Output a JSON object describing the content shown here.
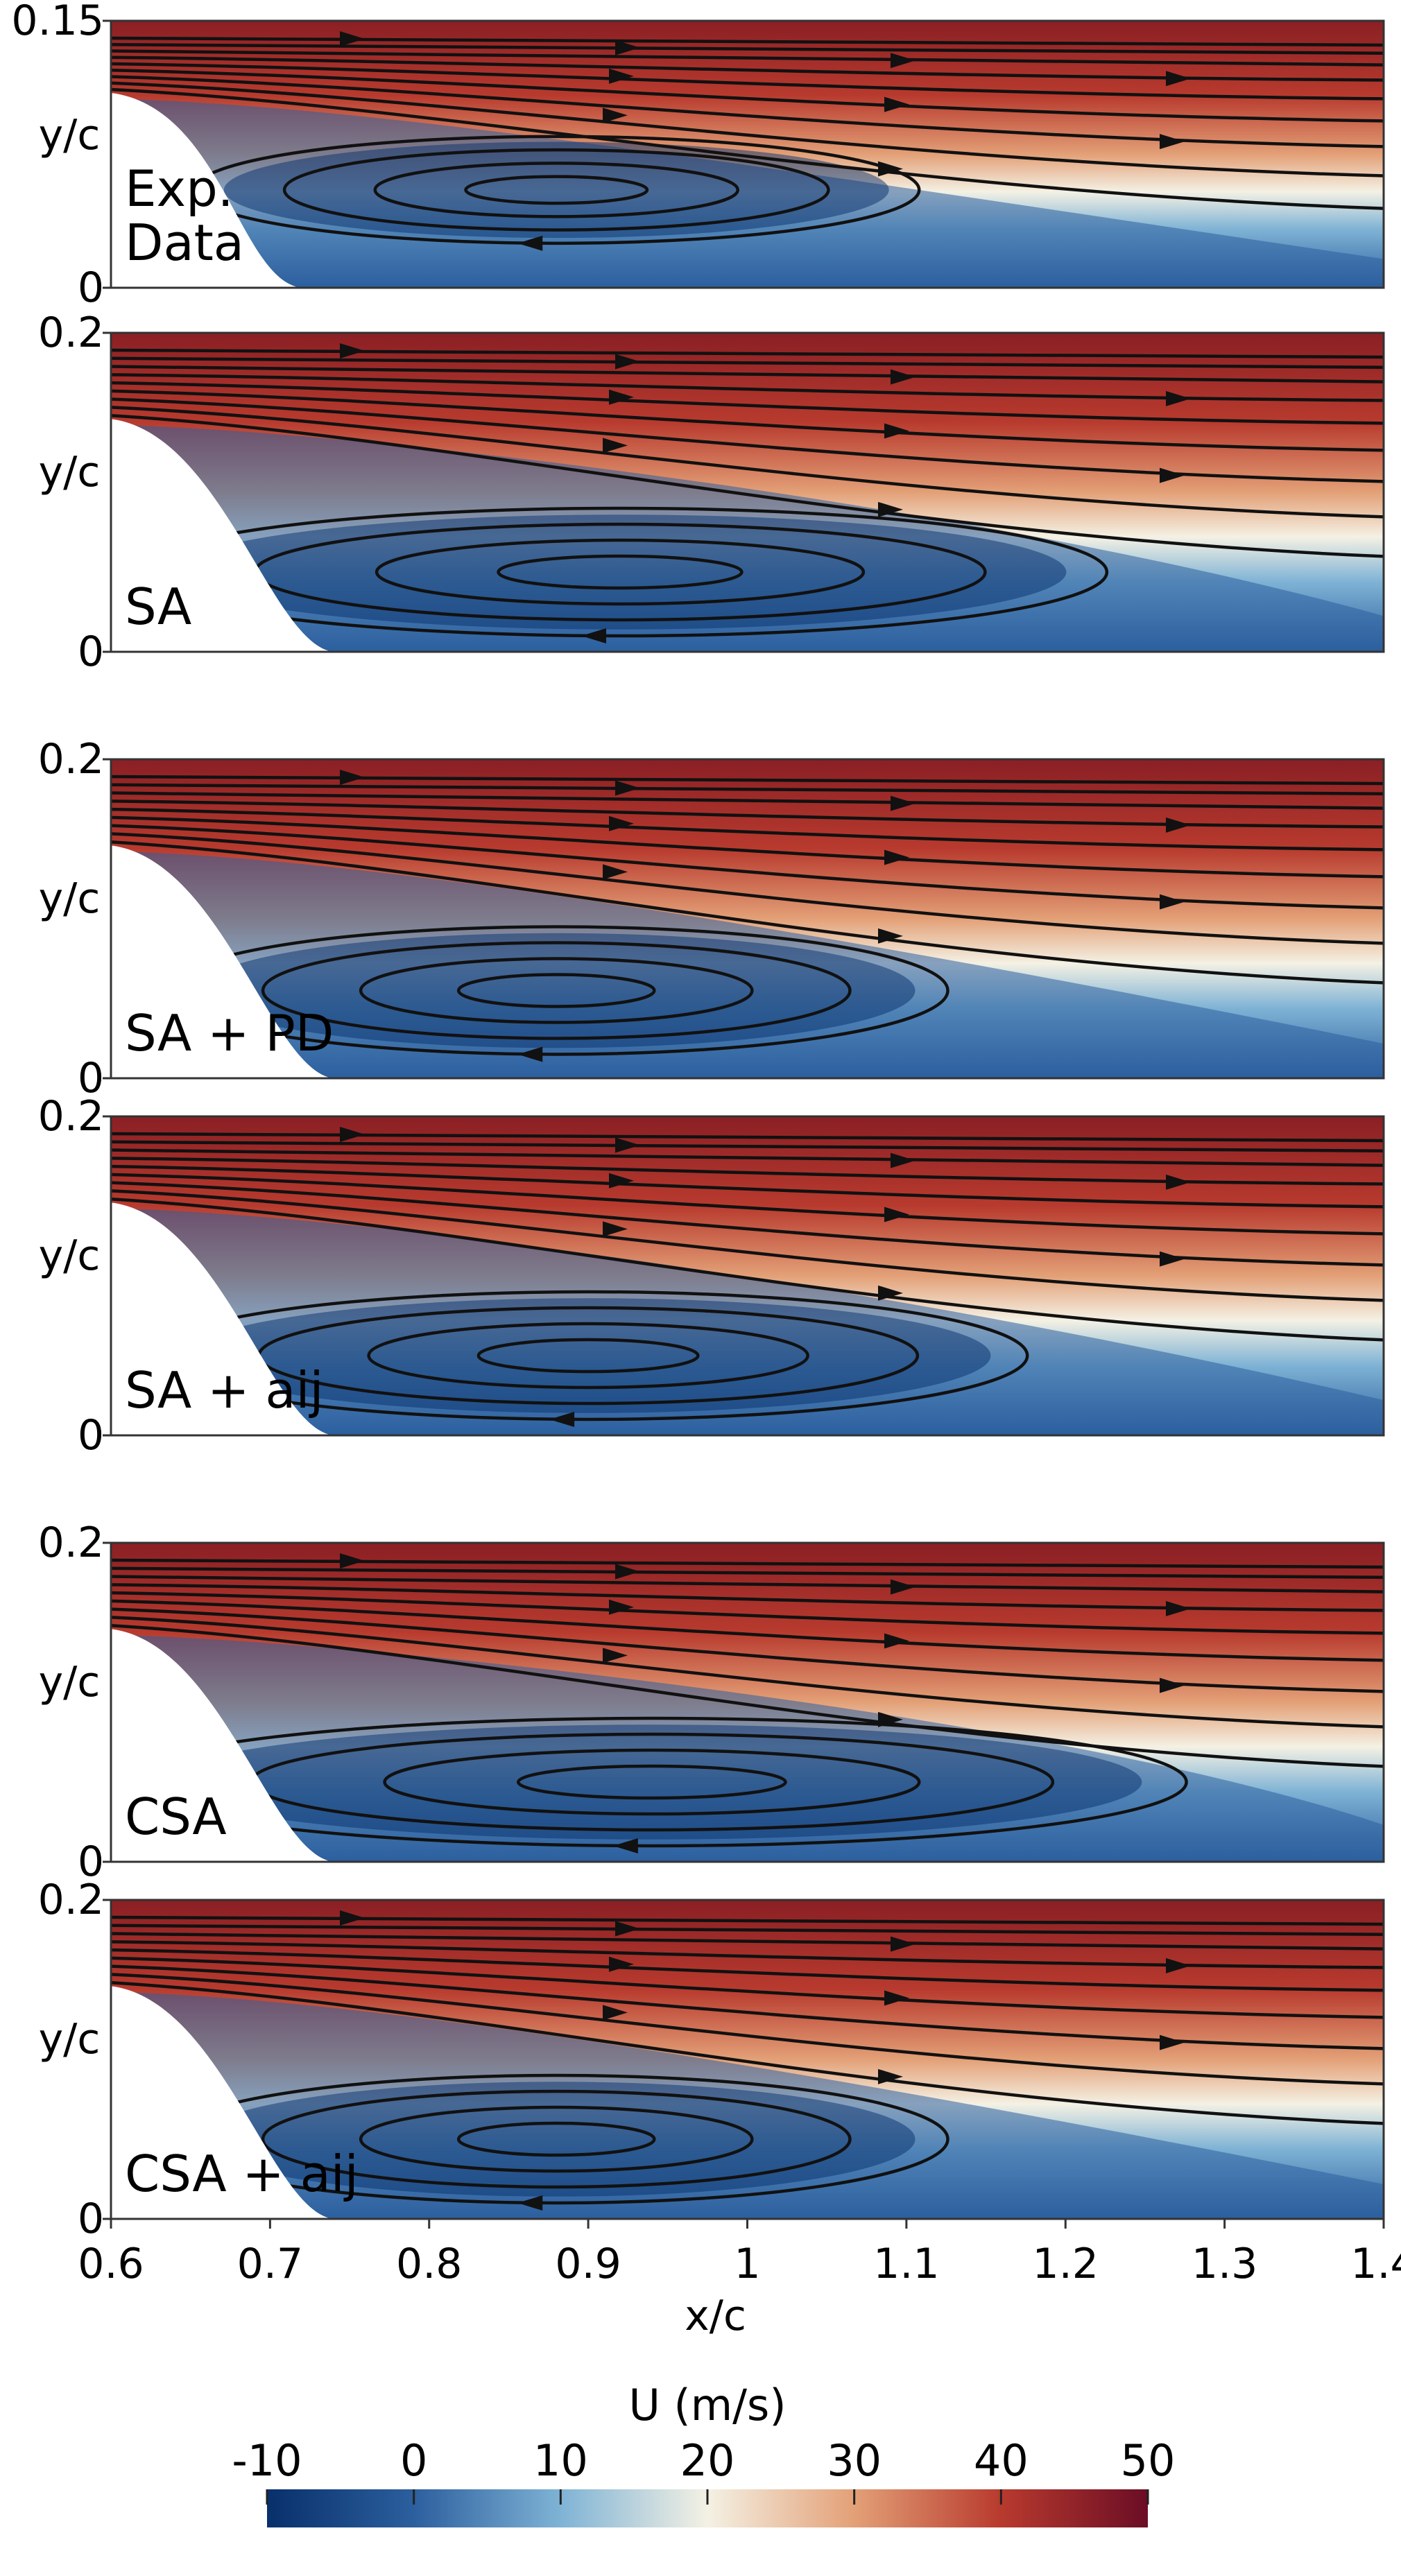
{
  "chart_data": {
    "type": "heatmap",
    "xlabel": "x/c",
    "x_ticks": [
      0.6,
      0.7,
      0.8,
      0.9,
      1,
      1.1,
      1.2,
      1.3,
      1.4
    ],
    "xlim": [
      0.6,
      1.4
    ],
    "panels": [
      {
        "label_lines": [
          "Exp.",
          "Data"
        ],
        "ylabel": "y/c",
        "ylim": [
          0,
          0.15
        ],
        "y_ticks": [
          0,
          0.15
        ],
        "vortex_center": [
          0.88,
          0.055
        ],
        "reattachment_x": 1.1
      },
      {
        "label_lines": [
          "SA"
        ],
        "ylabel": "y/c",
        "ylim": [
          0,
          0.2
        ],
        "y_ticks": [
          0,
          0.2
        ],
        "vortex_center": [
          0.92,
          0.05
        ],
        "reattachment_x": 1.25
      },
      {
        "label_lines": [
          "SA + PD"
        ],
        "ylabel": "y/c",
        "ylim": [
          0,
          0.2
        ],
        "y_ticks": [
          0,
          0.2
        ],
        "vortex_center": [
          0.88,
          0.055
        ],
        "reattachment_x": 1.15
      },
      {
        "label_lines": [
          "SA + aij"
        ],
        "ylabel": "y/c",
        "ylim": [
          0,
          0.2
        ],
        "y_ticks": [
          0,
          0.2
        ],
        "vortex_center": [
          0.9,
          0.05
        ],
        "reattachment_x": 1.2
      },
      {
        "label_lines": [
          "CSA"
        ],
        "ylabel": "y/c",
        "ylim": [
          0,
          0.2
        ],
        "y_ticks": [
          0,
          0.2
        ],
        "vortex_center": [
          0.94,
          0.05
        ],
        "reattachment_x": 1.3
      },
      {
        "label_lines": [
          "CSA + aij"
        ],
        "ylabel": "y/c",
        "ylim": [
          0,
          0.2
        ],
        "y_ticks": [
          0,
          0.2
        ],
        "vortex_center": [
          0.88,
          0.05
        ],
        "reattachment_x": 1.15
      }
    ],
    "colorbar": {
      "title": "U (m/s)",
      "ticks": [
        -10,
        0,
        10,
        20,
        30,
        40,
        50
      ],
      "range": [
        -10,
        50
      ],
      "colors": [
        "#08306b",
        "#2c5f9e",
        "#7fb3d5",
        "#f4f1e4",
        "#e3a077",
        "#b83a2e",
        "#6b0d25"
      ]
    }
  }
}
